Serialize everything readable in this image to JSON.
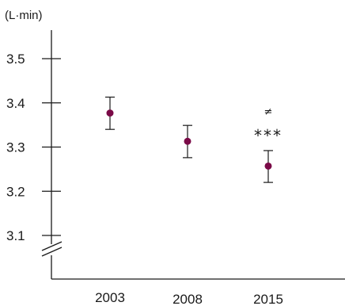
{
  "chart_data": {
    "type": "scatter",
    "ylabel": "(L·min)",
    "categories": [
      "2003",
      "2008",
      "2015"
    ],
    "y_ticks": [
      "3.1",
      "3.2",
      "3.3",
      "3.4",
      "3.5"
    ],
    "ylim": [
      3.0,
      3.6
    ],
    "axis_break": true,
    "grid": false,
    "series": [
      {
        "values": [
          3.377,
          3.313,
          3.257
        ],
        "error_low": [
          3.34,
          3.276,
          3.22
        ],
        "error_high": [
          3.413,
          3.349,
          3.292
        ]
      }
    ],
    "annotations": [
      {
        "category": "2015",
        "text": "≠"
      },
      {
        "category": "2015",
        "text": "***"
      }
    ],
    "colors": {
      "marker": "#7a0a47",
      "axis": "#1a1a1a"
    }
  }
}
